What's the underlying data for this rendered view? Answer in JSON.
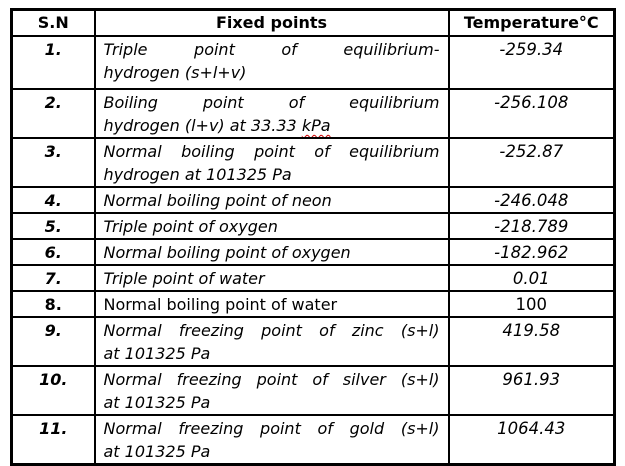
{
  "table": {
    "headers": {
      "sn": "S.N",
      "fixed_points": "Fixed points",
      "temperature": "Temperature°C"
    },
    "rows": [
      {
        "sn": "1.",
        "fixed_point_lines": [
          "Triple point of equilibrium-",
          "hydrogen (s+l+v)"
        ],
        "temperature": "-259.34"
      },
      {
        "sn": "2.",
        "fixed_point_lines": [
          "Boiling point of equilibrium",
          "hydrogen (l+v) at 33.33 kPa"
        ],
        "temperature": "-256.108",
        "spellcheck_underline_word": "kPa"
      },
      {
        "sn": "3.",
        "fixed_point_lines": [
          "Normal boiling point of equilibrium",
          "hydrogen at 101325 Pa"
        ],
        "temperature": "-252.87"
      },
      {
        "sn": "4.",
        "fixed_point_lines": [
          "Normal boiling point of neon"
        ],
        "temperature": "-246.048"
      },
      {
        "sn": "5.",
        "fixed_point_lines": [
          "Triple point of oxygen"
        ],
        "temperature": "-218.789"
      },
      {
        "sn": "6.",
        "fixed_point_lines": [
          "Normal boiling point of oxygen"
        ],
        "temperature": "-182.962"
      },
      {
        "sn": "7.",
        "fixed_point_lines": [
          "Triple point of water"
        ],
        "temperature": "0.01"
      },
      {
        "sn": "8.",
        "fixed_point_lines": [
          "Normal boiling point of water"
        ],
        "temperature": "100",
        "upright": true
      },
      {
        "sn": "9.",
        "fixed_point_lines": [
          "Normal freezing point of zinc (s+l)",
          "at 101325 Pa"
        ],
        "temperature": "419.58"
      },
      {
        "sn": "10.",
        "fixed_point_lines": [
          "Normal freezing point of silver (s+l)",
          "at 101325 Pa"
        ],
        "temperature": "961.93"
      },
      {
        "sn": "11.",
        "fixed_point_lines": [
          "Normal freezing point of gold (s+l)",
          "at 101325 Pa"
        ],
        "temperature": "1064.43"
      }
    ],
    "colors": {
      "border": "#000000",
      "text": "#000000",
      "background": "#ffffff",
      "spellcheck_underline": "#cc0000"
    }
  }
}
